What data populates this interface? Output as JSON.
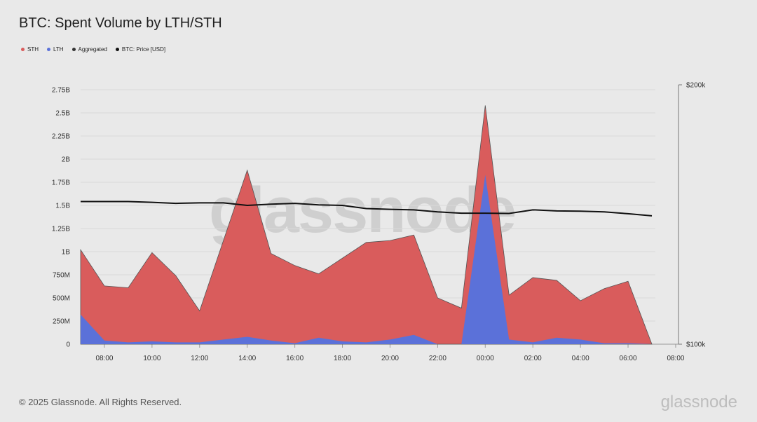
{
  "title": "BTC: Spent Volume by LTH/STH",
  "watermark": "glassnode",
  "footer": {
    "copyright": "© 2025 Glassnode. All Rights Reserved.",
    "logo": "glassnode"
  },
  "colors": {
    "sth": "#d95c5c",
    "lth": "#5b71d9",
    "aggregated": "#333333",
    "price": "#111111"
  },
  "chart_data": {
    "type": "area",
    "title": "BTC: Spent Volume by LTH/STH",
    "x": [
      "07:00",
      "08:00",
      "09:00",
      "10:00",
      "11:00",
      "12:00",
      "13:00",
      "14:00",
      "15:00",
      "16:00",
      "17:00",
      "18:00",
      "19:00",
      "20:00",
      "21:00",
      "22:00",
      "23:00",
      "00:00",
      "01:00",
      "02:00",
      "03:00",
      "04:00",
      "05:00",
      "06:00",
      "07:00"
    ],
    "x_tick_labels": [
      "08:00",
      "10:00",
      "12:00",
      "14:00",
      "16:00",
      "18:00",
      "20:00",
      "22:00",
      "00:00",
      "02:00",
      "04:00",
      "06:00",
      "08:00"
    ],
    "x_tick_positions": [
      "08:00",
      "10:00",
      "12:00",
      "14:00",
      "16:00",
      "18:00",
      "20:00",
      "22:00",
      "00:00",
      "02:00",
      "04:00",
      "06:00",
      "08:00"
    ],
    "series": [
      {
        "name": "STH",
        "values": [
          700000000,
          590000000,
          590000000,
          960000000,
          720000000,
          340000000,
          1070000000,
          1800000000,
          940000000,
          840000000,
          690000000,
          900000000,
          1080000000,
          1070000000,
          1080000000,
          500000000,
          390000000,
          750000000,
          480000000,
          700000000,
          620000000,
          420000000,
          590000000,
          670000000,
          0
        ]
      },
      {
        "name": "LTH",
        "values": [
          320000000,
          40000000,
          20000000,
          30000000,
          20000000,
          20000000,
          50000000,
          80000000,
          40000000,
          10000000,
          70000000,
          30000000,
          20000000,
          50000000,
          100000000,
          0,
          0,
          1830000000,
          50000000,
          20000000,
          70000000,
          50000000,
          10000000,
          10000000,
          0
        ]
      },
      {
        "name": "Aggregated",
        "values": [
          1020000000,
          630000000,
          610000000,
          990000000,
          740000000,
          360000000,
          1120000000,
          1880000000,
          980000000,
          850000000,
          760000000,
          930000000,
          1100000000,
          1120000000,
          1180000000,
          500000000,
          390000000,
          2580000000,
          530000000,
          720000000,
          690000000,
          470000000,
          600000000,
          680000000,
          0
        ]
      },
      {
        "name": "BTC: Price [USD]",
        "axis": "right",
        "values": [
          155000,
          155000,
          155000,
          154700,
          154300,
          154500,
          154500,
          153500,
          154000,
          154300,
          153700,
          153500,
          152300,
          152000,
          151800,
          151000,
          150500,
          150500,
          150400,
          151800,
          151400,
          151300,
          151000,
          150300,
          149500
        ]
      }
    ],
    "y_left": {
      "lim": [
        0,
        2750000000
      ],
      "ticks": [
        0,
        250000000,
        500000000,
        750000000,
        1000000000,
        1250000000,
        1500000000,
        1750000000,
        2000000000,
        2250000000,
        2500000000,
        2750000000
      ],
      "tick_labels": [
        "0",
        "250M",
        "500M",
        "750M",
        "1B",
        "1.25B",
        "1.5B",
        "1.75B",
        "2B",
        "2.25B",
        "2.5B",
        "2.75B"
      ]
    },
    "y_right": {
      "lim": [
        100000,
        200000
      ],
      "ticks": [
        100000,
        200000
      ],
      "tick_labels": [
        "$100k",
        "$200k"
      ]
    },
    "legend": [
      {
        "name": "STH",
        "color": "#d95c5c"
      },
      {
        "name": "LTH",
        "color": "#5b71d9"
      },
      {
        "name": "Aggregated",
        "color": "#333333"
      },
      {
        "name": "BTC: Price [USD]",
        "color": "#111111"
      }
    ],
    "legend_position": "top-left",
    "grid": true
  }
}
